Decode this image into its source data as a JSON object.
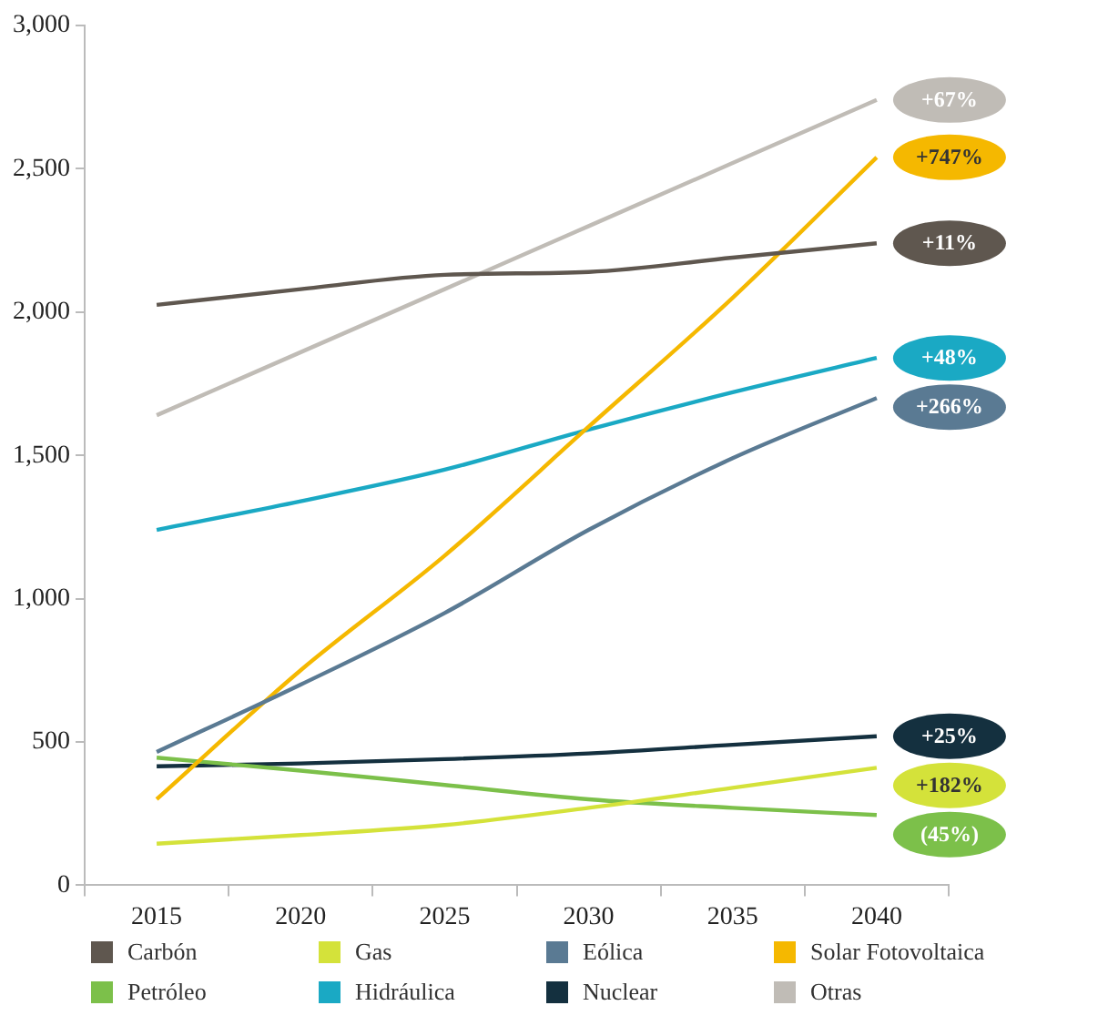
{
  "chart_data": {
    "type": "line",
    "categories": [
      "2015",
      "2020",
      "2025",
      "2030",
      "2035",
      "2040"
    ],
    "ylim": [
      0,
      3000
    ],
    "yticks": [
      {
        "value": 0,
        "label": "0"
      },
      {
        "value": 500,
        "label": "500"
      },
      {
        "value": 1000,
        "label": "1,000"
      },
      {
        "value": 1500,
        "label": "1,500"
      },
      {
        "value": 2000,
        "label": "2,000"
      },
      {
        "value": 2500,
        "label": "2,500"
      },
      {
        "value": 3000,
        "label": "3,000"
      }
    ],
    "grid": false,
    "legend": "bottom",
    "marker": "none",
    "line_style": "solid",
    "series": [
      {
        "name": "Carbón",
        "color": "#5f574f",
        "values": [
          2025,
          2080,
          2130,
          2140,
          2190,
          2240
        ]
      },
      {
        "name": "Gas",
        "color": "#d4e23a",
        "values": [
          145,
          175,
          210,
          270,
          340,
          410
        ]
      },
      {
        "name": "Eólica",
        "color": "#5a7a93",
        "values": [
          465,
          700,
          950,
          1240,
          1490,
          1700
        ]
      },
      {
        "name": "Solar Fotovoltaica",
        "color": "#f5b800",
        "values": [
          300,
          750,
          1150,
          1600,
          2050,
          2540
        ]
      },
      {
        "name": "Petróleo",
        "color": "#7cc04a",
        "values": [
          445,
          400,
          350,
          300,
          270,
          245
        ]
      },
      {
        "name": "Hidráulica",
        "color": "#1aa9c4",
        "values": [
          1240,
          1340,
          1450,
          1590,
          1720,
          1840
        ]
      },
      {
        "name": "Nuclear",
        "color": "#14303f",
        "values": [
          415,
          425,
          440,
          460,
          490,
          520
        ]
      },
      {
        "name": "Otras",
        "color": "#c0bcb6",
        "values": [
          1640,
          1860,
          2080,
          2300,
          2520,
          2740
        ]
      }
    ],
    "annotations": [
      {
        "text": "+67%",
        "x": "2040",
        "y": 2740
      },
      {
        "text": "+747%",
        "x": "2040",
        "y": 2540
      },
      {
        "text": "+11%",
        "x": "2040",
        "y": 2240
      },
      {
        "text": "+48%",
        "x": "2040",
        "y": 1840
      },
      {
        "text": "+266%",
        "x": "2040",
        "y": 1700
      },
      {
        "text": "+25%",
        "x": "2040",
        "y": 520
      },
      {
        "text": "+182%",
        "x": "2040",
        "y": 410
      },
      {
        "text": "(45%)",
        "x": "2040",
        "y": 245
      }
    ]
  }
}
